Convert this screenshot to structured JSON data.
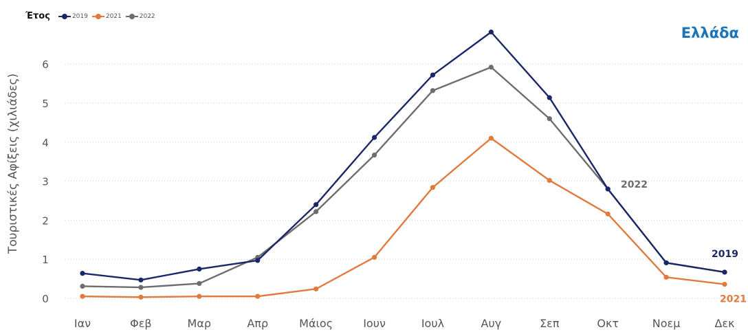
{
  "chart_data": {
    "type": "line",
    "title": "Ελλάδα",
    "legend_title": "Έτος",
    "ylabel": "Τουριστικές Αφίξεις (χιλιάδες)",
    "xlabel": "",
    "categories": [
      "Ιαν",
      "Φεβ",
      "Μαρ",
      "Απρ",
      "Μάιος",
      "Ιουν",
      "Ιουλ",
      "Αυγ",
      "Σεπ",
      "Οκτ",
      "Νοεμ",
      "Δεκ"
    ],
    "yticks": [
      "0",
      "1",
      "2",
      "3",
      "4",
      "5",
      "6"
    ],
    "ylim": [
      -0.2,
      7.1
    ],
    "grid": true,
    "legend_position": "top-left",
    "series": [
      {
        "name": "2019",
        "color": "#1a2766",
        "values": [
          0.64,
          0.47,
          0.75,
          0.97,
          2.4,
          4.12,
          5.72,
          6.82,
          5.14,
          2.8,
          0.91,
          0.67
        ]
      },
      {
        "name": "2021",
        "color": "#e07a3f",
        "values": [
          0.05,
          0.03,
          0.05,
          0.05,
          0.24,
          1.05,
          2.84,
          4.1,
          3.02,
          2.16,
          0.54,
          0.36
        ]
      },
      {
        "name": "2022",
        "color": "#6d6d6d",
        "values": [
          0.31,
          0.28,
          0.38,
          1.05,
          2.22,
          3.67,
          5.32,
          5.92,
          4.6,
          2.8,
          0.91,
          0.67
        ]
      }
    ]
  }
}
